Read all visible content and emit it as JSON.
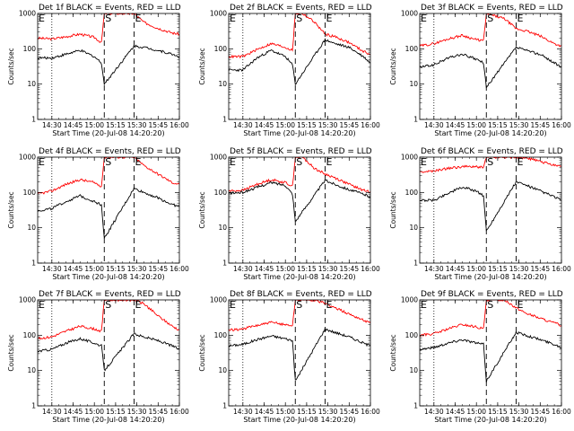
{
  "figure": {
    "background": "#ffffff"
  },
  "chart_data": [
    {
      "type": "line",
      "title": "Det 1f BLACK = Events, RED = LLD",
      "xlabel": "Start Time (20-Jul-08 14:20:20)",
      "ylabel": "Counts/sec",
      "yscale": "log",
      "ylim": [
        1,
        1000
      ],
      "ytick_labels": [
        "1",
        "10",
        "100",
        "1000"
      ],
      "xlim": [
        "14:20",
        "16:00"
      ],
      "xtick_labels": [
        "14:30",
        "14:45",
        "15:00",
        "15:15",
        "15:30",
        "15:45",
        "16:00"
      ],
      "markers": [
        {
          "label": "E",
          "x": "14:20",
          "style": "none"
        },
        {
          "label": "",
          "x": "14:30",
          "style": "dotted"
        },
        {
          "label": "S",
          "x": "15:07",
          "style": "dashed"
        },
        {
          "label": "E",
          "x": "15:28",
          "style": "dashed"
        }
      ],
      "series": [
        {
          "color": "#ff0000",
          "x": [
            "14:20",
            "14:30",
            "14:40",
            "14:50",
            "15:00",
            "15:05",
            "15:07",
            "15:10",
            "15:20",
            "15:28",
            "15:35",
            "15:45",
            "15:55",
            "16:00"
          ],
          "values": [
            200,
            190,
            220,
            260,
            210,
            150,
            1000,
            1000,
            1000,
            1000,
            560,
            380,
            280,
            260
          ]
        },
        {
          "color": "#000000",
          "x": [
            "14:20",
            "14:30",
            "14:40",
            "14:50",
            "15:00",
            "15:05",
            "15:07",
            "15:28",
            "15:35",
            "15:45",
            "15:55",
            "16:00"
          ],
          "values": [
            55,
            55,
            70,
            90,
            60,
            40,
            10,
            120,
            110,
            90,
            70,
            60
          ]
        }
      ]
    },
    {
      "type": "line",
      "title": "Det 2f BLACK = Events, RED = LLD",
      "xlabel": "Start Time (20-Jul-08 14:20:20)",
      "ylabel": "Counts/sec",
      "yscale": "log",
      "ylim": [
        1,
        1000
      ],
      "ytick_labels": [
        "1",
        "10",
        "100",
        "1000"
      ],
      "xlim": [
        "14:20",
        "16:00"
      ],
      "xtick_labels": [
        "14:30",
        "14:45",
        "15:00",
        "15:15",
        "15:30",
        "15:45",
        "16:00"
      ],
      "markers": [
        {
          "label": "E",
          "x": "14:20",
          "style": "none"
        },
        {
          "label": "",
          "x": "14:30",
          "style": "dotted"
        },
        {
          "label": "S",
          "x": "15:07",
          "style": "dashed"
        },
        {
          "label": "E",
          "x": "15:28",
          "style": "dashed"
        }
      ],
      "series": [
        {
          "color": "#ff0000",
          "x": [
            "14:20",
            "14:30",
            "14:40",
            "14:50",
            "15:00",
            "15:05",
            "15:07",
            "15:12",
            "15:20",
            "15:28",
            "15:35",
            "15:45",
            "15:55",
            "16:00"
          ],
          "values": [
            60,
            60,
            95,
            140,
            110,
            90,
            1000,
            1000,
            600,
            260,
            220,
            150,
            85,
            70
          ]
        },
        {
          "color": "#000000",
          "x": [
            "14:20",
            "14:30",
            "14:40",
            "14:50",
            "15:00",
            "15:05",
            "15:07",
            "15:28",
            "15:35",
            "15:45",
            "15:55",
            "16:00"
          ],
          "values": [
            25,
            25,
            55,
            90,
            60,
            35,
            10,
            180,
            140,
            110,
            60,
            40
          ]
        }
      ]
    },
    {
      "type": "line",
      "title": "Det 3f BLACK = Events, RED = LLD",
      "xlabel": "Start Time (20-Jul-08 14:20:20)",
      "ylabel": "Counts/sec",
      "yscale": "log",
      "ylim": [
        1,
        1000
      ],
      "ytick_labels": [
        "1",
        "10",
        "100",
        "1000"
      ],
      "xlim": [
        "14:20",
        "16:00"
      ],
      "xtick_labels": [
        "14:30",
        "14:45",
        "15:00",
        "15:15",
        "15:30",
        "15:45",
        "16:00"
      ],
      "markers": [
        {
          "label": "E",
          "x": "14:20",
          "style": "none"
        },
        {
          "label": "",
          "x": "14:30",
          "style": "dotted"
        },
        {
          "label": "S",
          "x": "15:07",
          "style": "dashed"
        },
        {
          "label": "E",
          "x": "15:28",
          "style": "dashed"
        }
      ],
      "series": [
        {
          "color": "#ff0000",
          "x": [
            "14:20",
            "14:30",
            "14:40",
            "14:50",
            "15:00",
            "15:05",
            "15:07",
            "15:20",
            "15:28",
            "15:35",
            "15:45",
            "15:55",
            "16:00"
          ],
          "values": [
            120,
            140,
            190,
            240,
            180,
            170,
            1000,
            700,
            370,
            320,
            230,
            140,
            120
          ]
        },
        {
          "color": "#000000",
          "x": [
            "14:20",
            "14:30",
            "14:40",
            "14:50",
            "15:00",
            "15:05",
            "15:07",
            "15:28",
            "15:35",
            "15:45",
            "15:55",
            "16:00"
          ],
          "values": [
            30,
            35,
            55,
            70,
            50,
            40,
            8,
            110,
            90,
            70,
            40,
            30
          ]
        }
      ]
    },
    {
      "type": "line",
      "title": "Det 4f BLACK = Events, RED = LLD",
      "xlabel": "Start Time (20-Jul-08 14:20:20)",
      "ylabel": "Counts/sec",
      "yscale": "log",
      "ylim": [
        1,
        1000
      ],
      "ytick_labels": [
        "1",
        "10",
        "100",
        "1000"
      ],
      "xlim": [
        "14:20",
        "16:00"
      ],
      "xtick_labels": [
        "14:30",
        "14:45",
        "15:00",
        "15:15",
        "15:30",
        "15:45",
        "16:00"
      ],
      "markers": [
        {
          "label": "E",
          "x": "14:20",
          "style": "none"
        },
        {
          "label": "",
          "x": "14:30",
          "style": "dotted"
        },
        {
          "label": "S",
          "x": "15:07",
          "style": "dashed"
        },
        {
          "label": "E",
          "x": "15:28",
          "style": "dashed"
        }
      ],
      "series": [
        {
          "color": "#ff0000",
          "x": [
            "14:20",
            "14:30",
            "14:40",
            "14:50",
            "15:00",
            "15:05",
            "15:07",
            "15:10",
            "15:20",
            "15:28",
            "15:35",
            "15:45",
            "15:55",
            "16:00"
          ],
          "values": [
            90,
            110,
            170,
            230,
            190,
            150,
            1000,
            1000,
            1000,
            1000,
            580,
            330,
            190,
            170
          ]
        },
        {
          "color": "#000000",
          "x": [
            "14:20",
            "14:30",
            "14:40",
            "14:50",
            "15:00",
            "15:05",
            "15:07",
            "15:28",
            "15:35",
            "15:45",
            "15:55",
            "16:00"
          ],
          "values": [
            30,
            35,
            55,
            80,
            55,
            45,
            5,
            130,
            100,
            70,
            45,
            40
          ]
        }
      ]
    },
    {
      "type": "line",
      "title": "Det 5f BLACK = Events, RED = LLD",
      "xlabel": "Start Time (20-Jul-08 14:20:20)",
      "ylabel": "Counts/sec",
      "yscale": "log",
      "ylim": [
        1,
        1000
      ],
      "ytick_labels": [
        "1",
        "10",
        "100",
        "1000"
      ],
      "xlim": [
        "14:20",
        "16:00"
      ],
      "xtick_labels": [
        "14:30",
        "14:45",
        "15:00",
        "15:15",
        "15:30",
        "15:45",
        "16:00"
      ],
      "markers": [
        {
          "label": "E",
          "x": "14:20",
          "style": "none"
        },
        {
          "label": "",
          "x": "14:30",
          "style": "dotted"
        },
        {
          "label": "S",
          "x": "15:07",
          "style": "dashed"
        },
        {
          "label": "E",
          "x": "15:28",
          "style": "dashed"
        }
      ],
      "series": [
        {
          "color": "#ff0000",
          "x": [
            "14:20",
            "14:30",
            "14:40",
            "14:50",
            "15:00",
            "15:05",
            "15:07",
            "15:12",
            "15:20",
            "15:28",
            "15:35",
            "15:45",
            "15:55",
            "16:00"
          ],
          "values": [
            110,
            115,
            170,
            230,
            190,
            150,
            1000,
            1000,
            500,
            330,
            260,
            170,
            115,
            105
          ]
        },
        {
          "color": "#000000",
          "x": [
            "14:20",
            "14:30",
            "14:40",
            "14:50",
            "15:00",
            "15:05",
            "15:07",
            "15:28",
            "15:35",
            "15:45",
            "15:55",
            "16:00"
          ],
          "values": [
            95,
            100,
            140,
            190,
            160,
            90,
            15,
            220,
            170,
            120,
            90,
            75
          ]
        }
      ]
    },
    {
      "type": "line",
      "title": "Det 6f BLACK = Events, RED = LLD",
      "xlabel": "Start Time (20-Jul-08 14:20:20)",
      "ylabel": "Counts/sec",
      "yscale": "log",
      "ylim": [
        1,
        1000
      ],
      "ytick_labels": [
        "1",
        "10",
        "100",
        "1000"
      ],
      "xlim": [
        "14:20",
        "16:00"
      ],
      "xtick_labels": [
        "14:30",
        "14:45",
        "15:00",
        "15:15",
        "15:30",
        "15:45",
        "16:00"
      ],
      "markers": [
        {
          "label": "E",
          "x": "14:20",
          "style": "none"
        },
        {
          "label": "",
          "x": "14:30",
          "style": "dotted"
        },
        {
          "label": "S",
          "x": "15:07",
          "style": "dashed"
        },
        {
          "label": "E",
          "x": "15:28",
          "style": "dashed"
        }
      ],
      "series": [
        {
          "color": "#ff0000",
          "x": [
            "14:20",
            "14:30",
            "14:40",
            "14:50",
            "15:00",
            "15:05",
            "15:07",
            "15:10",
            "15:20",
            "15:28",
            "15:35",
            "15:45",
            "15:55",
            "16:00"
          ],
          "values": [
            380,
            400,
            480,
            540,
            530,
            520,
            1000,
            1000,
            1000,
            1000,
            950,
            750,
            600,
            560
          ]
        },
        {
          "color": "#000000",
          "x": [
            "14:20",
            "14:30",
            "14:40",
            "14:50",
            "15:00",
            "15:05",
            "15:07",
            "15:28",
            "15:35",
            "15:45",
            "15:55",
            "16:00"
          ],
          "values": [
            60,
            60,
            95,
            140,
            110,
            80,
            8,
            200,
            160,
            110,
            75,
            60
          ]
        }
      ]
    },
    {
      "type": "line",
      "title": "Det 7f BLACK = Events, RED = LLD",
      "xlabel": "Start Time (20-Jul-08 14:20:20)",
      "ylabel": "Counts/sec",
      "yscale": "log",
      "ylim": [
        1,
        1000
      ],
      "ytick_labels": [
        "1",
        "10",
        "100",
        "1000"
      ],
      "xlim": [
        "14:20",
        "16:00"
      ],
      "xtick_labels": [
        "14:30",
        "14:45",
        "15:00",
        "15:15",
        "15:30",
        "15:45",
        "16:00"
      ],
      "markers": [
        {
          "label": "E",
          "x": "14:20",
          "style": "none"
        },
        {
          "label": "",
          "x": "14:30",
          "style": "dotted"
        },
        {
          "label": "S",
          "x": "15:07",
          "style": "dashed"
        },
        {
          "label": "E",
          "x": "15:28",
          "style": "dashed"
        }
      ],
      "series": [
        {
          "color": "#ff0000",
          "x": [
            "14:20",
            "14:30",
            "14:40",
            "14:50",
            "15:00",
            "15:05",
            "15:07",
            "15:10",
            "15:20",
            "15:28",
            "15:35",
            "15:45",
            "15:55",
            "16:00"
          ],
          "values": [
            80,
            90,
            130,
            180,
            150,
            130,
            1000,
            1000,
            1000,
            1000,
            780,
            350,
            180,
            140
          ]
        },
        {
          "color": "#000000",
          "x": [
            "14:20",
            "14:30",
            "14:40",
            "14:50",
            "15:00",
            "15:05",
            "15:07",
            "15:28",
            "15:35",
            "15:45",
            "15:55",
            "16:00"
          ],
          "values": [
            35,
            40,
            60,
            80,
            60,
            50,
            10,
            110,
            90,
            70,
            50,
            40
          ]
        }
      ]
    },
    {
      "type": "line",
      "title": "Det 8f BLACK = Events, RED = LLD",
      "xlabel": "Start Time (20-Jul-08 14:20:20)",
      "ylabel": "Counts/sec",
      "yscale": "log",
      "ylim": [
        1,
        1000
      ],
      "ytick_labels": [
        "1",
        "10",
        "100",
        "1000"
      ],
      "xlim": [
        "14:20",
        "16:00"
      ],
      "xtick_labels": [
        "14:30",
        "14:45",
        "15:00",
        "15:15",
        "15:30",
        "15:45",
        "16:00"
      ],
      "markers": [
        {
          "label": "E",
          "x": "14:20",
          "style": "none"
        },
        {
          "label": "",
          "x": "14:30",
          "style": "dotted"
        },
        {
          "label": "S",
          "x": "15:07",
          "style": "dashed"
        },
        {
          "label": "E",
          "x": "15:28",
          "style": "dashed"
        }
      ],
      "series": [
        {
          "color": "#ff0000",
          "x": [
            "14:20",
            "14:30",
            "14:40",
            "14:50",
            "15:00",
            "15:05",
            "15:07",
            "15:10",
            "15:20",
            "15:28",
            "15:35",
            "15:45",
            "15:55",
            "16:00"
          ],
          "values": [
            140,
            150,
            190,
            230,
            200,
            190,
            1000,
            1000,
            1000,
            800,
            600,
            400,
            270,
            220
          ]
        },
        {
          "color": "#000000",
          "x": [
            "14:20",
            "14:30",
            "14:40",
            "14:50",
            "15:00",
            "15:05",
            "15:07",
            "15:28",
            "15:35",
            "15:45",
            "15:55",
            "16:00"
          ],
          "values": [
            50,
            55,
            75,
            95,
            80,
            70,
            5,
            150,
            120,
            90,
            60,
            50
          ]
        }
      ]
    },
    {
      "type": "line",
      "title": "Det 9f BLACK = Events, RED = LLD",
      "xlabel": "Start Time (20-Jul-08 14:20:20)",
      "ylabel": "Counts/sec",
      "yscale": "log",
      "ylim": [
        1,
        1000
      ],
      "ytick_labels": [
        "1",
        "10",
        "100",
        "1000"
      ],
      "xlim": [
        "14:20",
        "16:00"
      ],
      "xtick_labels": [
        "14:30",
        "14:45",
        "15:00",
        "15:15",
        "15:30",
        "15:45",
        "16:00"
      ],
      "markers": [
        {
          "label": "E",
          "x": "14:20",
          "style": "none"
        },
        {
          "label": "",
          "x": "14:30",
          "style": "dotted"
        },
        {
          "label": "S",
          "x": "15:07",
          "style": "dashed"
        },
        {
          "label": "E",
          "x": "15:28",
          "style": "dashed"
        }
      ],
      "series": [
        {
          "color": "#ff0000",
          "x": [
            "14:20",
            "14:30",
            "14:40",
            "14:50",
            "15:00",
            "15:05",
            "15:07",
            "15:10",
            "15:20",
            "15:28",
            "15:35",
            "15:45",
            "15:55",
            "16:00"
          ],
          "values": [
            100,
            110,
            150,
            200,
            170,
            150,
            1000,
            1000,
            1000,
            600,
            420,
            300,
            220,
            190
          ]
        },
        {
          "color": "#000000",
          "x": [
            "14:20",
            "14:30",
            "14:40",
            "14:50",
            "15:00",
            "15:05",
            "15:07",
            "15:28",
            "15:35",
            "15:45",
            "15:55",
            "16:00"
          ],
          "values": [
            40,
            45,
            60,
            75,
            60,
            55,
            5,
            120,
            100,
            75,
            55,
            45
          ]
        }
      ]
    }
  ]
}
